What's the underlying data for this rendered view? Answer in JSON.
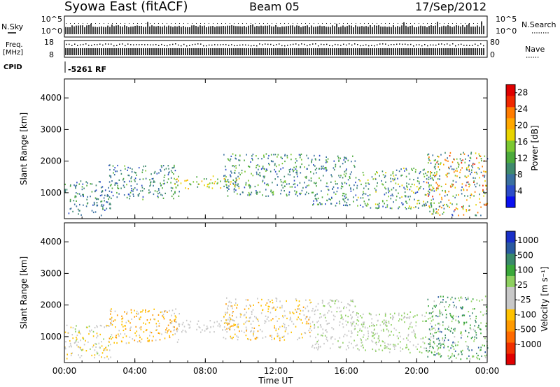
{
  "header": {
    "station": "Syowa East (fitACF)",
    "beam": "Beam 05",
    "date": "17/Sep/2012"
  },
  "strips": {
    "nsky_label": "N.Sky",
    "nsky_ticks": [
      "10^5",
      "10^0"
    ],
    "nsearch_label": "N.Search",
    "freq_label_1": "Freq.",
    "freq_label_2": "[MHz]",
    "freq_ticks": [
      "18",
      "8"
    ],
    "nave_label": "Nave",
    "nave_ticks": [
      "80",
      "0"
    ],
    "cpid_label": "CPID",
    "cpid_value": "-5261 RF"
  },
  "chart_data": [
    {
      "type": "heatmap",
      "parameter": "Power",
      "ylabel": "Slant Range [km]",
      "xlabel": "",
      "x_ticks": [
        "00:00",
        "04:00",
        "08:00",
        "12:00",
        "16:00",
        "20:00",
        "00:00"
      ],
      "y_ticks": [
        1000,
        2000,
        3000,
        4000
      ],
      "x_range_hours": [
        0,
        24
      ],
      "y_range_km": [
        180,
        4600
      ],
      "colorbar": {
        "label": "Power [dB]",
        "ticks": [
          "4",
          "8",
          "12",
          "16",
          "20",
          "24",
          "28"
        ],
        "range": [
          0,
          30
        ],
        "colors": [
          "#0a10f0",
          "#2c4cc8",
          "#3a70a0",
          "#3f8a6e",
          "#4caa3c",
          "#7cc832",
          "#e8d400",
          "#ffa800",
          "#ff7c00",
          "#f02800",
          "#e00000"
        ]
      },
      "echo_regions": [
        {
          "hours": [
            0.0,
            2.6
          ],
          "km": [
            300,
            1400
          ],
          "value_range": [
            4,
            12
          ]
        },
        {
          "hours": [
            2.5,
            6.5
          ],
          "km": [
            800,
            1900
          ],
          "value_range": [
            4,
            14
          ]
        },
        {
          "hours": [
            6.0,
            10.0
          ],
          "km": [
            1150,
            1550
          ],
          "value_range": [
            10,
            22
          ]
        },
        {
          "hours": [
            9.0,
            14.0
          ],
          "km": [
            900,
            2250
          ],
          "value_range": [
            4,
            16
          ]
        },
        {
          "hours": [
            14.0,
            16.5
          ],
          "km": [
            600,
            2200
          ],
          "value_range": [
            4,
            14
          ]
        },
        {
          "hours": [
            16.5,
            21.0
          ],
          "km": [
            500,
            1800
          ],
          "value_range": [
            4,
            18
          ]
        },
        {
          "hours": [
            20.5,
            24.0
          ],
          "km": [
            300,
            2300
          ],
          "value_range": [
            4,
            26
          ]
        }
      ]
    },
    {
      "type": "heatmap",
      "parameter": "Velocity",
      "ylabel": "Slant Range [km]",
      "xlabel": "Time UT",
      "x_ticks": [
        "00:00",
        "04:00",
        "08:00",
        "12:00",
        "16:00",
        "20:00",
        "00:00"
      ],
      "y_ticks": [
        1000,
        2000,
        3000,
        4000
      ],
      "x_range_hours": [
        0,
        24
      ],
      "y_range_km": [
        180,
        4600
      ],
      "colorbar": {
        "label": "Velocity [m s⁻¹]",
        "ticks": [
          "1000",
          "500",
          "100",
          "25",
          "-25",
          "-100",
          "-500",
          "-1000"
        ],
        "range": [
          -1200,
          1200
        ],
        "colors": [
          "#e00000",
          "#f03000",
          "#ff6a00",
          "#ff9a00",
          "#ffc200",
          "#c8c8c8",
          "#c8c8c8",
          "#8ed060",
          "#3aa83a",
          "#3a8a6a",
          "#2a5aa0",
          "#1a30c8"
        ]
      },
      "echo_regions": [
        {
          "hours": [
            0.0,
            2.6
          ],
          "km": [
            300,
            1400
          ],
          "value_range": [
            -400,
            300
          ]
        },
        {
          "hours": [
            2.5,
            6.5
          ],
          "km": [
            800,
            1900
          ],
          "value_range": [
            -600,
            -40
          ]
        },
        {
          "hours": [
            6.0,
            10.0
          ],
          "km": [
            1150,
            1550
          ],
          "value_range": [
            -20,
            20
          ]
        },
        {
          "hours": [
            9.0,
            14.0
          ],
          "km": [
            900,
            2250
          ],
          "value_range": [
            -500,
            200
          ]
        },
        {
          "hours": [
            14.0,
            16.5
          ],
          "km": [
            600,
            2200
          ],
          "value_range": [
            -200,
            300
          ]
        },
        {
          "hours": [
            16.5,
            21.0
          ],
          "km": [
            500,
            1800
          ],
          "value_range": [
            40,
            400
          ]
        },
        {
          "hours": [
            20.5,
            24.0
          ],
          "km": [
            300,
            2300
          ],
          "value_range": [
            50,
            900
          ]
        }
      ]
    }
  ]
}
